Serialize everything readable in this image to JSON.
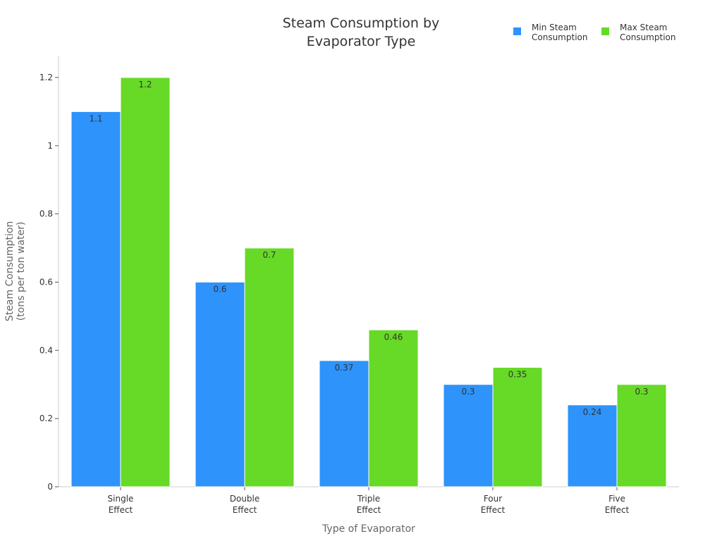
{
  "chart_data": {
    "type": "bar",
    "title": "Steam Consumption by Evaporator Type",
    "title_lines": [
      "Steam Consumption by",
      "Evaporator Type"
    ],
    "xlabel": "Type of Evaporator",
    "ylabel_lines": [
      "Steam Consumption",
      "(tons per ton water)"
    ],
    "categories": [
      [
        "Single",
        "Effect"
      ],
      [
        "Double",
        "Effect"
      ],
      [
        "Triple",
        "Effect"
      ],
      [
        "Four",
        "Effect"
      ],
      [
        "Five",
        "Effect"
      ]
    ],
    "series": [
      {
        "name": "Min Steam Consumption",
        "name_lines": [
          "Min Steam",
          "Consumption"
        ],
        "color": "#2E93FA",
        "values": [
          1.1,
          0.6,
          0.37,
          0.3,
          0.24
        ]
      },
      {
        "name": "Max Steam Consumption",
        "name_lines": [
          "Max Steam",
          "Consumption"
        ],
        "color": "#66DA26",
        "values": [
          1.2,
          0.7,
          0.46,
          0.35,
          0.3
        ]
      }
    ],
    "ylim": [
      0,
      1.2
    ],
    "yticks": [
      "0",
      "0.2",
      "0.4",
      "0.6",
      "0.8",
      "1",
      "1.2"
    ],
    "grid": false,
    "legend_position": "top-right"
  }
}
